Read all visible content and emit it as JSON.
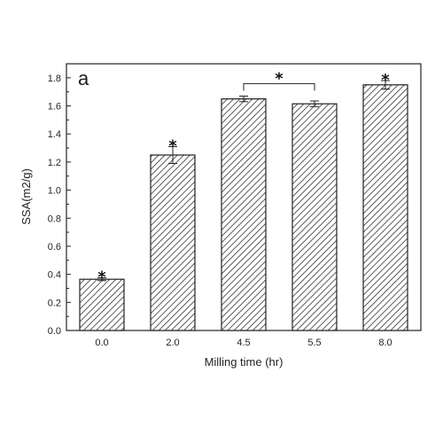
{
  "chart_data": {
    "type": "bar",
    "panel_label": "a",
    "xlabel": "Milling time (hr)",
    "ylabel": "SSA(m2/g)",
    "ylim": [
      0,
      1.9
    ],
    "yticks": [
      "0.0",
      "0.2",
      "0.4",
      "0.6",
      "0.8",
      "1.0",
      "1.2",
      "1.4",
      "1.6",
      "1.8"
    ],
    "categories": [
      "0.0",
      "2.0",
      "4.5",
      "5.5",
      "8.0"
    ],
    "values": [
      0.365,
      1.25,
      1.65,
      1.615,
      1.75
    ],
    "errors": [
      0.01,
      0.06,
      0.02,
      0.02,
      0.03
    ],
    "bar_fill": "hatched (diagonal)",
    "significance_marks": [
      {
        "category": "0.0",
        "label": "*"
      },
      {
        "category": "2.0",
        "label": "*"
      },
      {
        "category": "8.0",
        "label": "*"
      },
      {
        "bracket": [
          "4.5",
          "5.5"
        ],
        "label": "*"
      }
    ],
    "grid": false,
    "legend": "none"
  }
}
